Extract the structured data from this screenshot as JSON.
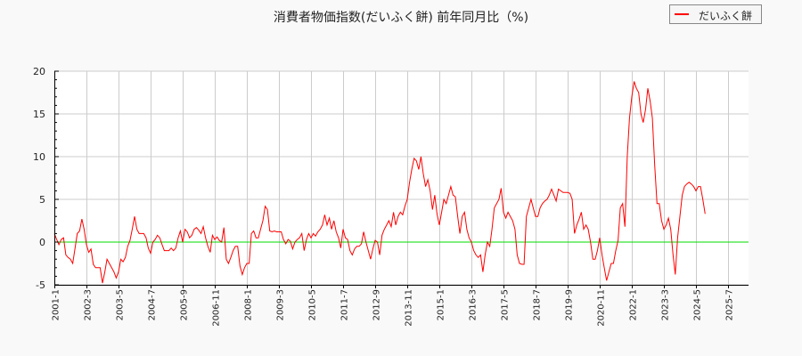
{
  "title": "消費者物価指数(だいふく餅) 前年同月比（%)",
  "legend": {
    "label": "だいふく餅",
    "color": "#ff0000"
  },
  "chart_data": {
    "type": "line",
    "title": "消費者物価指数(だいふく餅) 前年同月比（%)",
    "xlabel": "",
    "ylabel": "",
    "ylim": [
      -5,
      20
    ],
    "yticks": [
      -5,
      0,
      5,
      10,
      15,
      20
    ],
    "grid": true,
    "legend_position": "top-right",
    "reference_line": {
      "y": 0,
      "color": "#00dd00"
    },
    "xtick_labels": [
      "2001-1",
      "2002-3",
      "2003-5",
      "2004-7",
      "2005-9",
      "2006-11",
      "2008-1",
      "2009-3",
      "2010-5",
      "2011-7",
      "2012-9",
      "2013-11",
      "2015-1",
      "2016-3",
      "2017-5",
      "2018-7",
      "2019-9",
      "2020-11",
      "2022-1",
      "2023-3",
      "2024-5",
      "2025-7"
    ],
    "x_start": "2001-1",
    "x_step": "1 month",
    "series": [
      {
        "name": "だいふく餅",
        "color": "#ff0000",
        "values": [
          1.0,
          0.3,
          -0.3,
          0.3,
          0.5,
          -1.5,
          -1.8,
          -2.0,
          -2.5,
          -0.8,
          1.0,
          1.3,
          2.7,
          1.5,
          -0.3,
          -1.2,
          -0.8,
          -2.6,
          -3.0,
          -3.0,
          -3.0,
          -4.8,
          -3.5,
          -2.0,
          -2.5,
          -3.0,
          -3.5,
          -4.2,
          -3.5,
          -2.0,
          -2.3,
          -1.8,
          -0.5,
          0.2,
          1.5,
          3.0,
          1.5,
          1.0,
          1.0,
          1.0,
          0.5,
          -0.7,
          -1.3,
          0.0,
          0.3,
          0.8,
          0.5,
          -0.3,
          -1.0,
          -1.0,
          -1.0,
          -0.7,
          -1.0,
          -0.7,
          0.5,
          1.3,
          0.0,
          1.5,
          1.2,
          0.5,
          0.8,
          1.5,
          1.7,
          1.4,
          1.0,
          1.8,
          0.5,
          -0.5,
          -1.2,
          0.8,
          0.3,
          0.6,
          0.2,
          0.0,
          1.7,
          -2.0,
          -2.5,
          -1.8,
          -1.0,
          -0.5,
          -0.5,
          -2.8,
          -3.8,
          -3.0,
          -2.5,
          -2.5,
          1.0,
          1.3,
          0.5,
          0.5,
          1.5,
          2.5,
          4.2,
          3.8,
          1.3,
          1.2,
          1.3,
          1.2,
          1.2,
          1.2,
          0.3,
          -0.2,
          0.3,
          0.1,
          -0.8,
          0.0,
          0.3,
          0.5,
          1.0,
          -1.0,
          0.3,
          1.0,
          0.5,
          1.0,
          0.7,
          1.2,
          1.5,
          2.0,
          3.2,
          2.0,
          2.8,
          1.5,
          2.5,
          1.2,
          0.5,
          -0.7,
          1.5,
          0.5,
          0.3,
          -1.0,
          -1.5,
          -0.8,
          -0.5,
          -0.5,
          -0.2,
          1.2,
          0.0,
          -1.0,
          -2.0,
          -0.8,
          0.2,
          0.0,
          -1.5,
          0.8,
          1.5,
          2.0,
          2.5,
          1.8,
          3.5,
          2.0,
          3.0,
          3.5,
          3.2,
          4.2,
          5.0,
          7.0,
          8.5,
          9.8,
          9.5,
          8.5,
          10.0,
          8.0,
          6.5,
          7.3,
          6.0,
          3.8,
          5.5,
          3.3,
          2.0,
          3.5,
          5.0,
          4.5,
          5.5,
          6.5,
          5.5,
          5.3,
          3.0,
          1.0,
          3.0,
          3.5,
          1.5,
          0.5,
          0.0,
          -1.0,
          -1.5,
          -1.8,
          -1.5,
          -3.5,
          -1.5,
          0.0,
          -0.5,
          1.5,
          4.0,
          4.5,
          5.0,
          6.3,
          3.5,
          2.8,
          3.5,
          3.0,
          2.5,
          1.5,
          -1.5,
          -2.5,
          -2.6,
          -2.6,
          3.0,
          4.0,
          5.0,
          4.0,
          3.0,
          3.0,
          4.0,
          4.5,
          4.8,
          5.0,
          5.5,
          6.2,
          5.5,
          4.8,
          6.2,
          6.0,
          5.8,
          5.8,
          5.8,
          5.7,
          5.0,
          1.0,
          2.0,
          2.7,
          3.5,
          1.5,
          2.0,
          1.5,
          0.0,
          -2.0,
          -2.0,
          -1.0,
          0.5,
          -1.5,
          -3.0,
          -4.5,
          -3.5,
          -2.5,
          -2.5,
          -1.0,
          0.2,
          4.0,
          4.5,
          1.8,
          10.0,
          14.5,
          17.0,
          18.8,
          18.0,
          17.5,
          15.0,
          14.0,
          15.5,
          18.0,
          16.5,
          14.5,
          9.0,
          4.5,
          4.5,
          2.5,
          1.5,
          2.0,
          2.8,
          1.5,
          -1.5,
          -3.8,
          0.5,
          3.0,
          5.5,
          6.5,
          6.8,
          7.0,
          6.8,
          6.5,
          6.0,
          6.5,
          6.5,
          5.0,
          3.3
        ]
      }
    ]
  }
}
